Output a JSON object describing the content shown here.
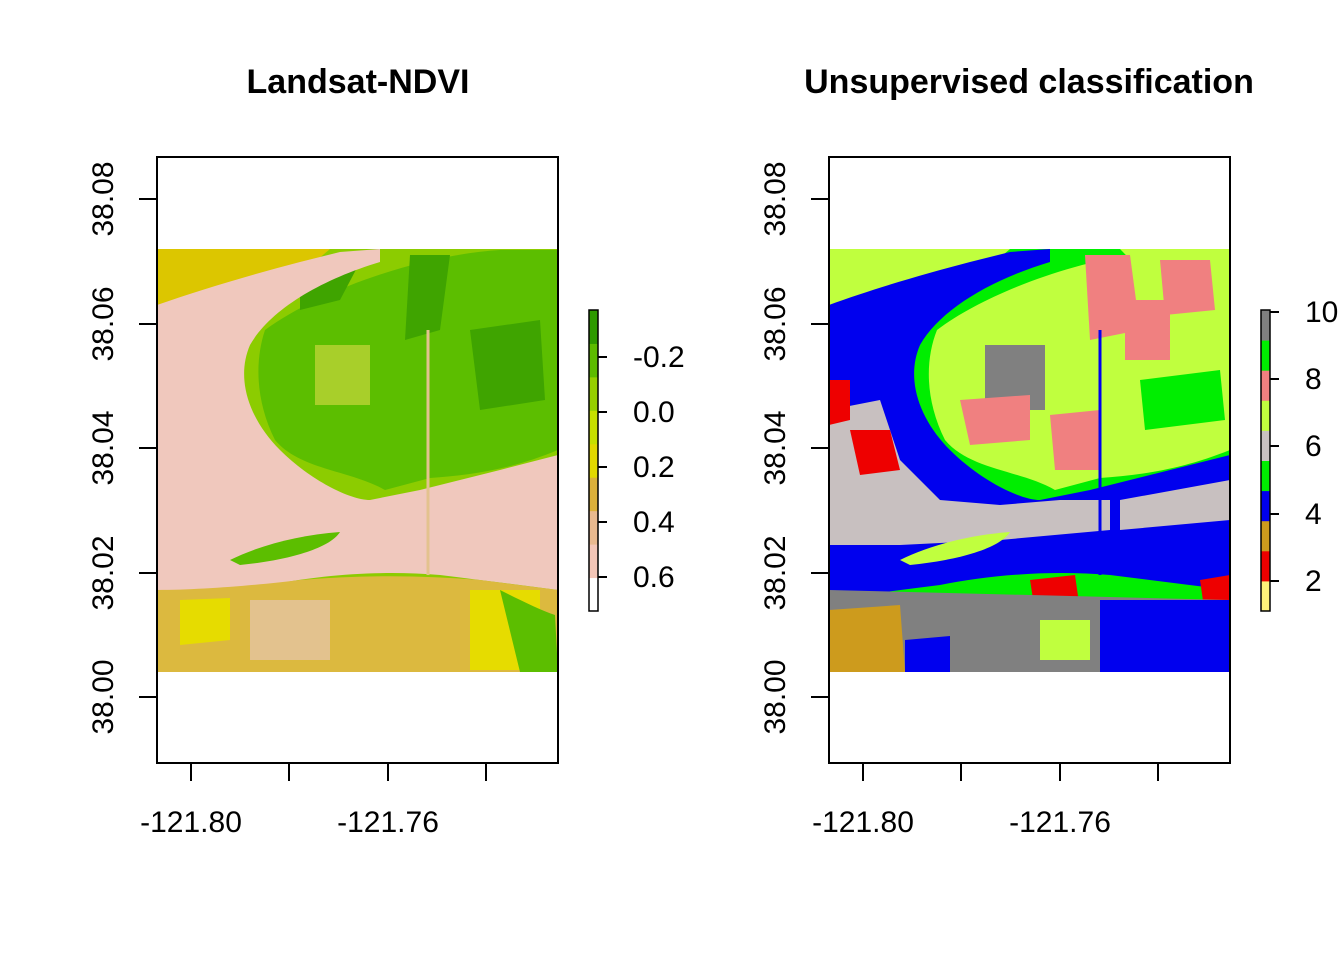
{
  "panels": [
    {
      "title": "Landsat-NDVI",
      "x_ticks": [
        "-121.80",
        "-121.76"
      ],
      "y_ticks": [
        "38.00",
        "38.02",
        "38.04",
        "38.06",
        "38.08"
      ],
      "legend": {
        "labels": [
          "-0.2",
          "0.0",
          "0.2",
          "0.4",
          "0.6"
        ],
        "colors": [
          "#ffffff",
          "#f3c6b7",
          "#e8b98f",
          "#dbb03a",
          "#e2d800",
          "#c7e000",
          "#96cf00",
          "#5dbb00",
          "#2e9a00"
        ]
      },
      "palette": {
        "water": "#f0c8bd",
        "bare": "#e3c28e",
        "low": "#dcb93f",
        "mid": "#e6dc00",
        "veg": "#8ccc00",
        "dense": "#5cbe00",
        "deep": "#3fa400"
      }
    },
    {
      "title": "Unsupervised classification",
      "x_ticks": [
        "-121.80",
        "-121.76"
      ],
      "y_ticks": [
        "38.00",
        "38.02",
        "38.04",
        "38.06",
        "38.08"
      ],
      "legend": {
        "labels": [
          "2",
          "4",
          "6",
          "8",
          "10"
        ],
        "colors": [
          "#fff27a",
          "#ee0000",
          "#cd9b1d",
          "#0000ee",
          "#00ee00",
          "#c8c0c0",
          "#c0ff3e",
          "#f08080",
          "#00ee00",
          "#808080"
        ]
      },
      "palette": {
        "water": "#0000ee",
        "grass": "#00ee00",
        "lime": "#c0ff3e",
        "salmon": "#f08080",
        "red": "#ee0000",
        "gray": "#808080",
        "silver": "#c8c0c0",
        "gold": "#cd9b1d",
        "yellow": "#fff27a"
      }
    }
  ]
}
